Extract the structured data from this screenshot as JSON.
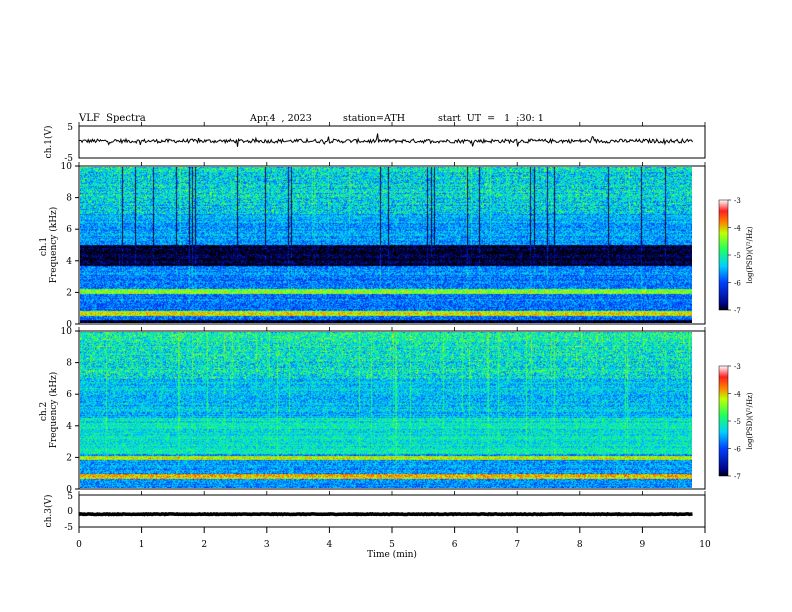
{
  "header": {
    "title": "VLF  Spectra",
    "date": "Apr.4  , 2023",
    "station": "station=ATH",
    "start": "start  UT  =   1  :30: 1"
  },
  "colors": {
    "cmap_low": "#000060",
    "cmap_mid": "#00c8ff",
    "cmap_green": "#22ff44",
    "cmap_high": "#ff2020",
    "cmap_top": "#ffffff",
    "trace": "#000000"
  },
  "chart_data": [
    {
      "type": "line",
      "name": "ch1-voltage",
      "ylabel": "ch.1(V)",
      "ylim": [
        -5,
        5
      ],
      "yticks": [
        "5",
        "-5"
      ],
      "xlim": [
        0,
        10
      ],
      "description_values": {
        "baseline": 0.3,
        "noise_amplitude": 0.6,
        "x_end": 9.8
      }
    },
    {
      "type": "heatmap",
      "name": "ch1-spectrogram",
      "ylabel": "ch.1\nFrequency  (kHz)",
      "ylim": [
        0,
        10
      ],
      "yticks": [
        "0",
        "2",
        "4",
        "6",
        "8",
        "10"
      ],
      "xlim": [
        0,
        9.8
      ],
      "zlim": [
        -7,
        -3
      ],
      "z_label": "log(PSD)(V²/Hz)",
      "z_ticks": [
        "-3",
        "-4",
        "-5",
        "-6",
        "-7"
      ],
      "bands_khz": [
        {
          "from": 3.7,
          "to": 5.0,
          "level": -7
        },
        {
          "from": 1.9,
          "to": 2.2,
          "level": -4.5
        },
        {
          "from": 0.5,
          "to": 0.8,
          "level": -4.2
        },
        {
          "from": 0.0,
          "to": 0.2,
          "level": -7
        }
      ]
    },
    {
      "type": "heatmap",
      "name": "ch2-spectrogram",
      "ylabel": "ch.2\nFrequency  (kHz)",
      "ylim": [
        0,
        10
      ],
      "yticks": [
        "0",
        "2",
        "4",
        "6",
        "8",
        "10"
      ],
      "xlim": [
        0,
        9.8
      ],
      "zlim": [
        -7,
        -3
      ],
      "z_label": "log(PSD)(V²/Hz)",
      "z_ticks": [
        "-3",
        "-4",
        "-5",
        "-6",
        "-7"
      ],
      "bands_khz": [
        {
          "from": 1.8,
          "to": 2.1,
          "level": -4.3
        },
        {
          "from": 0.6,
          "to": 0.9,
          "level": -4.0
        },
        {
          "from": 2.2,
          "to": 4.5,
          "level": -5.2
        }
      ]
    },
    {
      "type": "line",
      "name": "ch3-voltage",
      "ylabel": "ch.3(V)",
      "ylim": [
        -5,
        5
      ],
      "yticks": [
        "5",
        "0",
        "-5"
      ],
      "xlim": [
        0,
        10
      ],
      "description_values": {
        "baseline": -1.0,
        "noise_amplitude": 0.1,
        "x_end": 9.8
      }
    }
  ],
  "xaxis": {
    "label": "Time  (min)",
    "ticks": [
      "0",
      "1",
      "2",
      "3",
      "4",
      "5",
      "6",
      "7",
      "8",
      "9",
      "10"
    ]
  }
}
